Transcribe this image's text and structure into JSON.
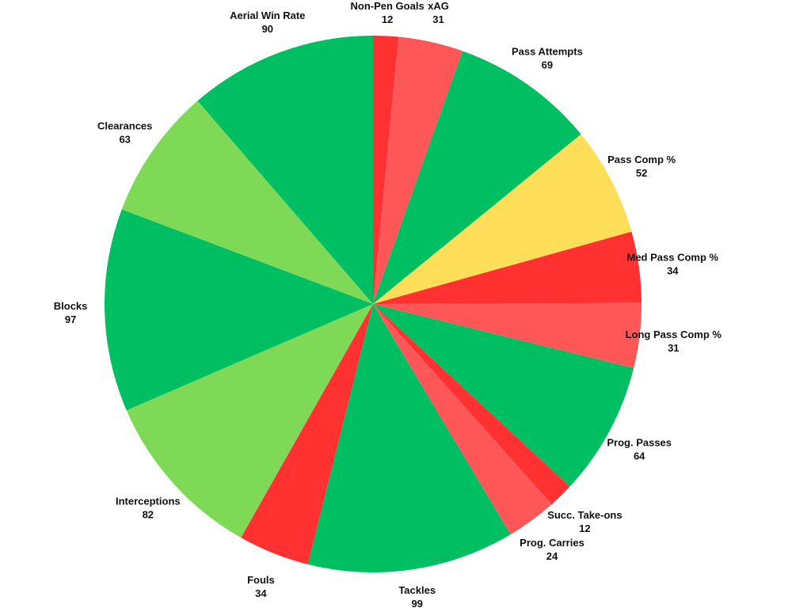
{
  "chart_data": {
    "type": "pie",
    "start": "top",
    "direction": "clockwise",
    "slices": [
      {
        "label": "Non-Pen Goals",
        "value": 12,
        "color": "#ff3131"
      },
      {
        "label": "xAG",
        "value": 31,
        "color": "#ff5757"
      },
      {
        "label": "Pass Attempts",
        "value": 69,
        "color": "#00bf63"
      },
      {
        "label": "Pass Comp %",
        "value": 52,
        "color": "#ffde59"
      },
      {
        "label": "Med Pass Comp %",
        "value": 34,
        "color": "#ff3131"
      },
      {
        "label": "Long Pass Comp %",
        "value": 31,
        "color": "#ff5757"
      },
      {
        "label": "Prog. Passes",
        "value": 64,
        "color": "#00bf63"
      },
      {
        "label": "Succ. Take-ons",
        "value": 12,
        "color": "#ff3131"
      },
      {
        "label": "Prog. Carries",
        "value": 24,
        "color": "#ff5757"
      },
      {
        "label": "Tackles",
        "value": 99,
        "color": "#00bf63"
      },
      {
        "label": "Fouls",
        "value": 34,
        "color": "#ff3131"
      },
      {
        "label": "Interceptions",
        "value": 82,
        "color": "#7ed957"
      },
      {
        "label": "Blocks",
        "value": 97,
        "color": "#00bf63"
      },
      {
        "label": "Clearances",
        "value": 63,
        "color": "#7ed957"
      },
      {
        "label": "Aerial Win Rate",
        "value": 90,
        "color": "#00bf63"
      }
    ]
  }
}
